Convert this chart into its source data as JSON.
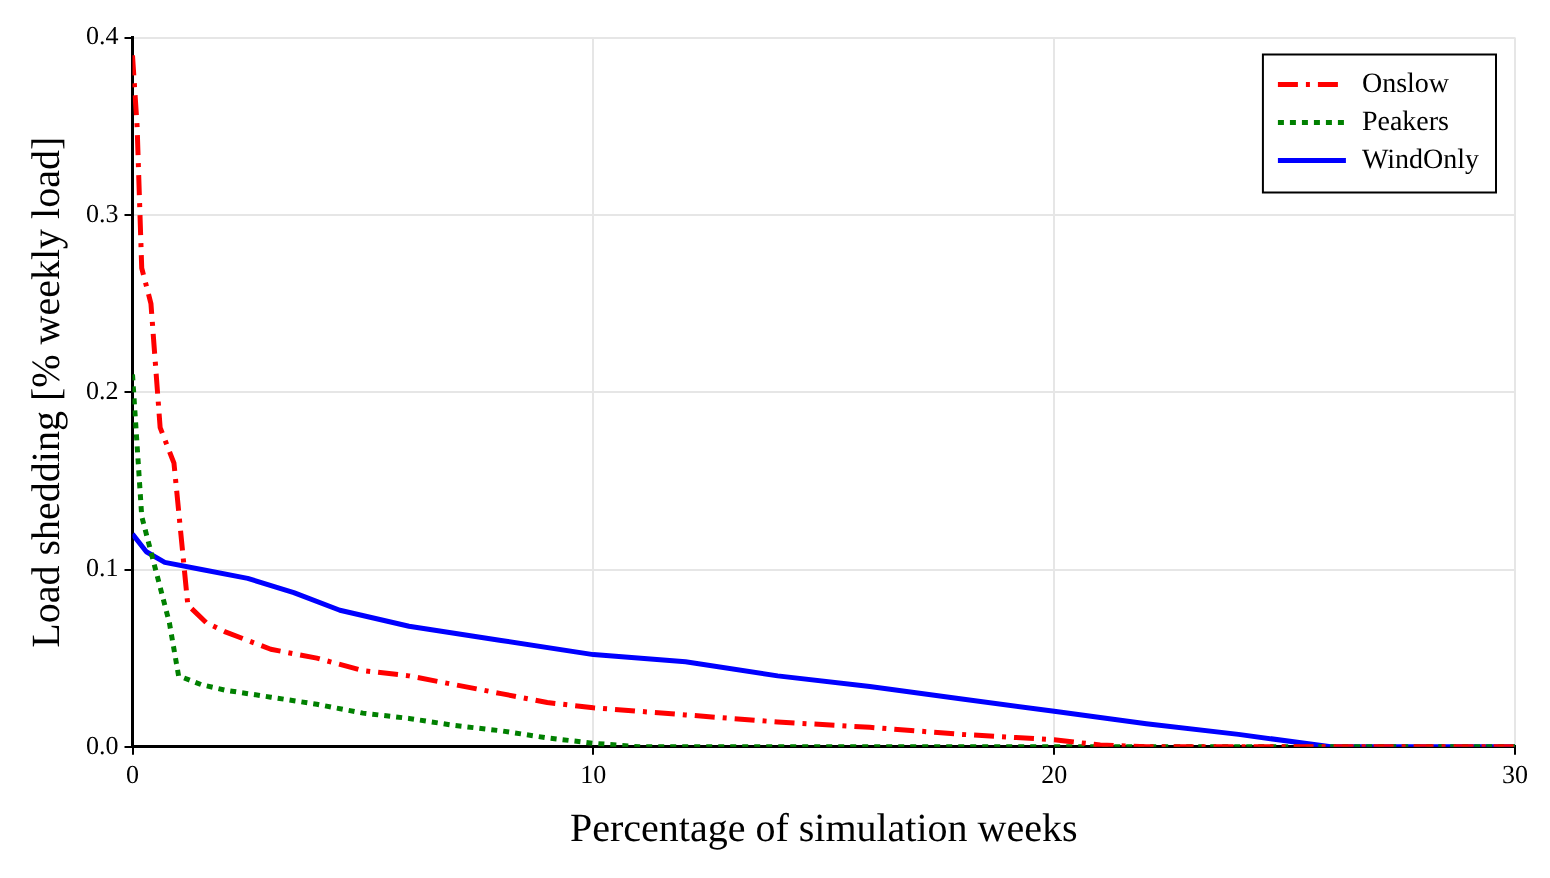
{
  "chart_data": {
    "type": "line",
    "xlabel": "Percentage of simulation weeks",
    "ylabel": "Load shedding [% weekly load]",
    "xlim": [
      0,
      30
    ],
    "xticks": [
      0,
      10,
      20,
      30
    ],
    "ylim": [
      0,
      0.4
    ],
    "yticks": [
      {
        "value": 0,
        "label": "0.0"
      },
      0.1,
      0.2,
      0.3,
      0.4
    ],
    "grid": true,
    "legend": "top right",
    "marker": "none",
    "series": [
      {
        "name": "Onslow",
        "color": "#ff0000",
        "line_style": "dashed",
        "x": [
          0,
          0.1,
          0.2,
          0.4,
          0.6,
          0.9,
          1.2,
          1.6,
          2,
          3,
          4,
          5,
          6,
          7,
          8,
          9,
          10,
          12,
          14,
          16,
          18,
          20,
          21,
          22,
          30
        ],
        "values": [
          0.39,
          0.35,
          0.27,
          0.25,
          0.18,
          0.16,
          0.08,
          0.07,
          0.065,
          0.055,
          0.05,
          0.043,
          0.04,
          0.035,
          0.03,
          0.025,
          0.022,
          0.018,
          0.014,
          0.011,
          0.007,
          0.004,
          0.001,
          0,
          0
        ]
      },
      {
        "name": "Peakers",
        "color": "#008000",
        "line_style": "dotted",
        "x": [
          0,
          0.2,
          0.5,
          0.8,
          1,
          1.5,
          2,
          3,
          4,
          5,
          6,
          7,
          8,
          9,
          10,
          11,
          30
        ],
        "values": [
          0.21,
          0.13,
          0.1,
          0.07,
          0.04,
          0.035,
          0.032,
          0.028,
          0.024,
          0.019,
          0.016,
          0.012,
          0.009,
          0.005,
          0.002,
          0,
          0
        ]
      },
      {
        "name": "WindOnly",
        "color": "#0000ff",
        "line_style": "solid",
        "x": [
          0,
          0.3,
          0.7,
          1.5,
          2.5,
          3.5,
          4.5,
          6,
          8,
          10,
          12,
          14,
          16,
          18,
          20,
          22,
          24,
          26,
          30
        ],
        "values": [
          0.12,
          0.11,
          0.104,
          0.1,
          0.095,
          0.087,
          0.077,
          0.068,
          0.06,
          0.052,
          0.048,
          0.04,
          0.034,
          0.027,
          0.02,
          0.013,
          0.007,
          0,
          0
        ]
      }
    ]
  }
}
